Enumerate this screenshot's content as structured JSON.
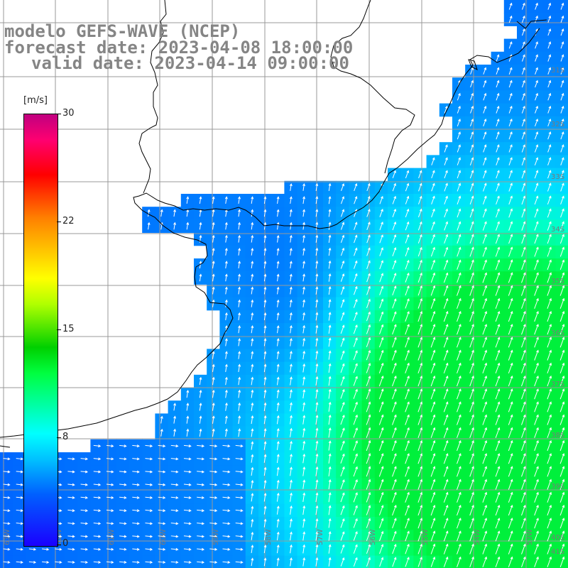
{
  "title": {
    "line1": "modelo GEFS-WAVE (NCEP)",
    "line2": "forecast date: 2023-04-08 18:00:00",
    "line3": "valid date: 2023-04-14 09:00:00"
  },
  "colorbar": {
    "unit": "[m/s]",
    "ticks": [
      "30",
      "22",
      "15",
      "8",
      "0"
    ],
    "colors": [
      "#1a00ff",
      "#00c0ff",
      "#00ffff",
      "#00ff40",
      "#ffff00",
      "#ff8000",
      "#ff0000",
      "#c00080"
    ]
  },
  "map": {
    "land_color": "#ffffff",
    "grid_color": "#999999",
    "coast_color": "#000000",
    "arrow_color": "#ffffff",
    "lat_labels": [
      "31S",
      "32S",
      "33S",
      "34S",
      "35S",
      "36S",
      "37S",
      "38S",
      "39S",
      "40S",
      "41S"
    ],
    "lon_labels": [
      "63W",
      "62W",
      "61W",
      "60W",
      "59W",
      "58W",
      "57W",
      "56W",
      "55W",
      "54W",
      "53W"
    ]
  }
}
